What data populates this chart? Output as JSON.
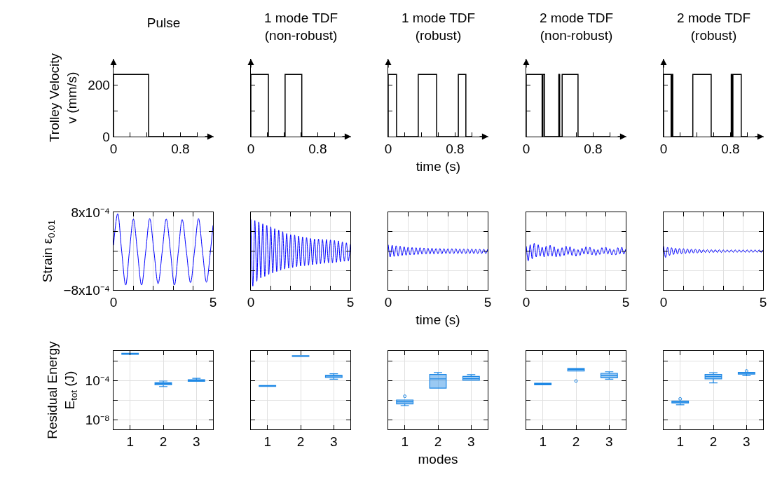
{
  "chart_data": [
    {
      "type": "step",
      "title": "Pulse",
      "ylabel": "Trolley Velocity\nv (mm/s)",
      "xlim": [
        0,
        1.2
      ],
      "ylim": [
        0,
        300
      ],
      "xticks": [
        0,
        {
          "value": 0.2,
          "label": null
        },
        {
          "value": 0.4,
          "label": null
        },
        {
          "value": 0.6,
          "label": null
        },
        0.8,
        {
          "value": 1.0,
          "label": null
        }
      ],
      "yticks": [
        0,
        {
          "value": 100,
          "label": null
        },
        200
      ],
      "color": "#000000",
      "x": [
        0,
        0,
        0.42,
        1.0
      ],
      "values": [
        0,
        240,
        0,
        0
      ]
    },
    {
      "type": "step",
      "title": "1 mode TDF\n(non-robust)",
      "xlim": [
        0,
        1.2
      ],
      "ylim": [
        0,
        300
      ],
      "xticks": [
        0,
        {
          "value": 0.2,
          "label": null
        },
        {
          "value": 0.4,
          "label": null
        },
        {
          "value": 0.6,
          "label": null
        },
        0.8,
        {
          "value": 1.0,
          "label": null
        }
      ],
      "yticks": [
        {
          "value": 0,
          "label": null
        },
        {
          "value": 100,
          "label": null
        },
        {
          "value": 200,
          "label": null
        }
      ],
      "tick_labels": "x",
      "color": "#000000",
      "x": [
        0,
        0,
        0.21,
        0.41,
        0.61,
        1.0
      ],
      "values": [
        0,
        240,
        0,
        240,
        0,
        0
      ]
    },
    {
      "type": "step",
      "title": "1 mode TDF\n(robust)",
      "xlabel": "time (s)",
      "xlim": [
        0,
        1.2
      ],
      "ylim": [
        0,
        300
      ],
      "xticks": [
        0,
        {
          "value": 0.2,
          "label": null
        },
        {
          "value": 0.4,
          "label": null
        },
        {
          "value": 0.6,
          "label": null
        },
        0.8,
        {
          "value": 1.0,
          "label": null
        }
      ],
      "yticks": [
        {
          "value": 0,
          "label": null
        },
        {
          "value": 100,
          "label": null
        },
        {
          "value": 200,
          "label": null
        }
      ],
      "tick_labels": "x",
      "color": "#000000",
      "x": [
        0,
        0,
        0.1,
        0.36,
        0.58,
        0.84,
        0.93,
        1.0
      ],
      "values": [
        0,
        240,
        0,
        240,
        0,
        240,
        0,
        0
      ]
    },
    {
      "type": "step",
      "title": "2 mode TDF\n(non-robust)",
      "xlim": [
        0,
        1.2
      ],
      "ylim": [
        0,
        300
      ],
      "xticks": [
        0,
        {
          "value": 0.2,
          "label": null
        },
        {
          "value": 0.4,
          "label": null
        },
        {
          "value": 0.6,
          "label": null
        },
        0.8,
        {
          "value": 1.0,
          "label": null
        }
      ],
      "yticks": [
        {
          "value": 0,
          "label": null
        },
        {
          "value": 100,
          "label": null
        },
        {
          "value": 200,
          "label": null
        }
      ],
      "tick_labels": "x",
      "color": "#000000",
      "x": [
        0,
        0,
        0.19,
        0.2,
        0.22,
        0.39,
        0.4,
        0.43,
        0.62,
        1.0
      ],
      "values": [
        0,
        240,
        0,
        240,
        0,
        240,
        0,
        240,
        0,
        0
      ]
    },
    {
      "type": "step",
      "title": "2 mode TDF\n(robust)",
      "xlim": [
        0,
        1.2
      ],
      "ylim": [
        0,
        300
      ],
      "xticks": [
        0,
        {
          "value": 0.2,
          "label": null
        },
        {
          "value": 0.4,
          "label": null
        },
        {
          "value": 0.6,
          "label": null
        },
        0.8,
        {
          "value": 1.0,
          "label": null
        }
      ],
      "yticks": [
        {
          "value": 0,
          "label": null
        },
        {
          "value": 100,
          "label": null
        },
        {
          "value": 200,
          "label": null
        }
      ],
      "tick_labels": "x",
      "color": "#000000",
      "x": [
        0,
        0,
        0.09,
        0.1,
        0.11,
        0.35,
        0.57,
        0.81,
        0.82,
        0.83,
        0.93,
        1.0
      ],
      "values": [
        0,
        240,
        0,
        240,
        0,
        240,
        0,
        240,
        0,
        240,
        0,
        0
      ]
    },
    {
      "type": "line",
      "ylabel": "Strain ε$_{0.01}$",
      "xlim": [
        0,
        5
      ],
      "ylim": [
        -0.0008,
        0.0008
      ],
      "xticks": [
        0,
        {
          "value": 1,
          "label": null
        },
        {
          "value": 2,
          "label": null
        },
        {
          "value": 3,
          "label": null
        },
        {
          "value": 4,
          "label": null
        },
        5
      ],
      "yticks": [
        {
          "value": -0.0008,
          "label": "−8x10⁻⁴"
        },
        {
          "value": -0.0004,
          "label": null
        },
        {
          "value": 0,
          "label": null
        },
        {
          "value": 0.0004,
          "label": null
        },
        {
          "value": 0.0008,
          "label": "8x10⁻⁴"
        }
      ],
      "grid": true,
      "color": "#0000ff",
      "x": [
        0,
        0.21,
        0.41,
        0.61,
        0.8,
        1.0,
        1.2,
        1.41,
        1.62,
        1.82,
        2.03,
        2.24,
        2.45,
        2.65,
        2.86,
        3.06,
        3.26,
        3.45,
        3.66,
        3.87,
        4.07,
        4.27,
        4.47,
        4.67,
        4.87,
        5.0
      ],
      "values": [
        0.00012,
        0.00077,
        0,
        -0.0007,
        0,
        0.00066,
        0,
        -0.0007,
        0,
        0.00067,
        0,
        -0.00067,
        0,
        0.00066,
        0,
        -0.0007,
        0,
        0.00065,
        0,
        -0.00065,
        0,
        0.00067,
        0,
        -0.00064,
        0,
        0.00053
      ]
    },
    {
      "type": "line",
      "xlim": [
        0,
        5
      ],
      "ylim": [
        -0.0008,
        0.0008
      ],
      "xticks": [
        0,
        {
          "value": 1,
          "label": null
        },
        {
          "value": 2,
          "label": null
        },
        {
          "value": 3,
          "label": null
        },
        {
          "value": 4,
          "label": null
        },
        5
      ],
      "yticks": [
        {
          "value": -0.0008,
          "label": null
        },
        {
          "value": -0.0004,
          "label": null
        },
        {
          "value": 0,
          "label": null
        },
        {
          "value": 0.0004,
          "label": null
        },
        {
          "value": 0.0008,
          "label": null
        }
      ],
      "tick_labels": "x",
      "grid": true,
      "color": "#0000ff",
      "x": [
        0,
        0.1,
        0.2,
        0.3,
        0.4,
        0.5,
        0.6,
        0.7,
        0.8,
        0.9,
        1,
        1.1,
        1.2,
        1.3,
        1.4,
        1.5,
        1.6,
        1.7,
        1.8,
        1.9,
        2,
        2.1,
        2.2,
        2.3,
        2.4,
        2.5,
        2.6,
        2.7,
        2.8,
        2.9,
        3,
        3.1,
        3.2,
        3.3,
        3.4,
        3.5,
        3.6,
        3.7,
        3.8,
        3.9,
        4,
        4.1,
        4.2,
        4.3,
        4.4,
        4.5,
        4.6,
        4.7,
        4.8,
        4.9,
        5
      ],
      "values": [
        0.00065,
        -0.00072,
        0.00063,
        -0.00062,
        0.0006,
        -0.00055,
        0.00056,
        -0.00052,
        0.00053,
        -0.00048,
        0.0005,
        -0.00045,
        0.00046,
        -0.00042,
        0.00043,
        -0.00039,
        0.0004,
        -0.00037,
        0.00036,
        -0.00035,
        0.00034,
        -0.00034,
        0.00033,
        -0.00032,
        0.00031,
        -0.00031,
        0.00029,
        -0.0003,
        0.00028,
        -0.00029,
        0.00026,
        -0.00028,
        0.00025,
        -0.00027,
        0.00025,
        -0.00026,
        0.00024,
        -0.00025,
        0.00024,
        -0.00024,
        0.00023,
        -0.00024,
        0.00022,
        -0.00023,
        0.00021,
        -0.00022,
        0.00019,
        -0.00021,
        0.00017,
        -0.0002,
        0.00014
      ]
    },
    {
      "type": "line",
      "xlabel": "time (s)",
      "xlim": [
        0,
        5
      ],
      "ylim": [
        -0.0008,
        0.0008
      ],
      "xticks": [
        0,
        {
          "value": 1,
          "label": null
        },
        {
          "value": 2,
          "label": null
        },
        {
          "value": 3,
          "label": null
        },
        {
          "value": 4,
          "label": null
        },
        5
      ],
      "yticks": [
        {
          "value": -0.0008,
          "label": null
        },
        {
          "value": -0.0004,
          "label": null
        },
        {
          "value": 0,
          "label": null
        },
        {
          "value": 0.0004,
          "label": null
        },
        {
          "value": 0.0008,
          "label": null
        }
      ],
      "tick_labels": "x",
      "grid": true,
      "color": "#0000ff",
      "x": [
        0,
        0.1,
        0.2,
        0.3,
        0.4,
        0.5,
        0.6,
        0.7,
        0.8,
        0.9,
        1,
        1.1,
        1.2,
        1.3,
        1.4,
        1.5,
        1.6,
        1.7,
        1.8,
        1.9,
        2,
        2.1,
        2.2,
        2.3,
        2.4,
        2.5,
        2.6,
        2.7,
        2.8,
        2.9,
        3,
        3.1,
        3.2,
        3.3,
        3.4,
        3.5,
        3.6,
        3.7,
        3.8,
        3.9,
        4,
        4.1,
        4.2,
        4.3,
        4.4,
        4.5,
        4.6,
        4.7,
        4.8,
        4.9,
        5
      ],
      "values": [
        0.00013,
        -0.00012,
        0.00012,
        -0.00011,
        0.00011,
        -0.0001,
        0.0001,
        -9e-05,
        9e-05,
        -8.5e-05,
        8e-05,
        -8e-05,
        7.5e-05,
        -7.5e-05,
        7e-05,
        -7e-05,
        7e-05,
        -6.5e-05,
        6.5e-05,
        -6e-05,
        6e-05,
        -6e-05,
        6e-05,
        -6e-05,
        5.5e-05,
        -5.5e-05,
        5.5e-05,
        -5.5e-05,
        5e-05,
        -5e-05,
        5e-05,
        -5e-05,
        5e-05,
        -5e-05,
        5e-05,
        -5e-05,
        4.5e-05,
        -5e-05,
        4.5e-05,
        -5e-05,
        4.5e-05,
        -5e-05,
        4.5e-05,
        -5e-05,
        4e-05,
        -5e-05,
        4e-05,
        -5e-05,
        4e-05,
        -5e-05,
        4e-05
      ]
    },
    {
      "type": "line",
      "xlim": [
        0,
        5
      ],
      "ylim": [
        -0.0008,
        0.0008
      ],
      "xticks": [
        0,
        {
          "value": 1,
          "label": null
        },
        {
          "value": 2,
          "label": null
        },
        {
          "value": 3,
          "label": null
        },
        {
          "value": 4,
          "label": null
        },
        5
      ],
      "yticks": [
        {
          "value": -0.0008,
          "label": null
        },
        {
          "value": -0.0004,
          "label": null
        },
        {
          "value": 0,
          "label": null
        },
        {
          "value": 0.0004,
          "label": null
        },
        {
          "value": 0.0008,
          "label": null
        }
      ],
      "tick_labels": "x",
      "grid": true,
      "color": "#0000ff",
      "x": [
        0,
        0.1,
        0.2,
        0.3,
        0.4,
        0.5,
        0.6,
        0.7,
        0.8,
        0.9,
        1,
        1.1,
        1.2,
        1.3,
        1.4,
        1.5,
        1.6,
        1.7,
        1.8,
        1.9,
        2,
        2.1,
        2.2,
        2.3,
        2.4,
        2.5,
        2.6,
        2.7,
        2.8,
        2.9,
        3,
        3.1,
        3.2,
        3.3,
        3.4,
        3.5,
        3.6,
        3.7,
        3.8,
        3.9,
        4,
        4.1,
        4.2,
        4.3,
        4.4,
        4.5,
        4.6,
        4.7,
        4.8,
        4.9,
        5
      ],
      "values": [
        0.0001,
        -0.0002,
        0.00013,
        -0.00016,
        0.00016,
        -0.00012,
        0.00013,
        -0.0001,
        8e-05,
        -0.00012,
        0.0001,
        -0.0001,
        0.00012,
        -0.0001,
        9e-05,
        -0.00012,
        5e-05,
        -0.00011,
        7e-05,
        -9e-05,
        0.0001,
        -7e-05,
        9e-05,
        -9e-05,
        5e-05,
        -0.0001,
        3e-05,
        -9e-05,
        6e-05,
        -6e-05,
        9e-05,
        -6e-05,
        8e-05,
        -8e-05,
        4e-05,
        -9e-05,
        3e-05,
        -7e-05,
        7e-05,
        -5e-05,
        8e-05,
        -6e-05,
        5e-05,
        -8e-05,
        3e-05,
        -8e-05,
        7e-05,
        -6e-05,
        8e-05,
        -6e-05,
        4e-05
      ]
    },
    {
      "type": "line",
      "xlim": [
        0,
        5
      ],
      "ylim": [
        -0.0008,
        0.0008
      ],
      "xticks": [
        0,
        {
          "value": 1,
          "label": null
        },
        {
          "value": 2,
          "label": null
        },
        {
          "value": 3,
          "label": null
        },
        {
          "value": 4,
          "label": null
        },
        5
      ],
      "yticks": [
        {
          "value": -0.0008,
          "label": null
        },
        {
          "value": -0.0004,
          "label": null
        },
        {
          "value": 0,
          "label": null
        },
        {
          "value": 0.0004,
          "label": null
        },
        {
          "value": 0.0008,
          "label": null
        }
      ],
      "tick_labels": "x",
      "grid": true,
      "color": "#0000ff",
      "x": [
        0,
        0.1,
        0.2,
        0.3,
        0.4,
        0.5,
        0.6,
        0.7,
        0.8,
        0.9,
        1,
        1.1,
        1.2,
        1.3,
        1.4,
        1.5,
        1.6,
        1.7,
        1.8,
        1.9,
        2,
        2.1,
        2.2,
        2.3,
        2.4,
        2.5,
        2.6,
        2.7,
        2.8,
        2.9,
        3,
        3.1,
        3.2,
        3.3,
        3.4,
        3.5,
        3.6,
        3.7,
        3.8,
        3.9,
        4,
        4.1,
        4.2,
        4.3,
        4.4,
        4.5,
        4.6,
        4.7,
        4.8,
        4.9,
        5
      ],
      "values": [
        0.0001,
        -0.00013,
        8e-05,
        -9e-05,
        7e-05,
        -7e-05,
        6e-05,
        -6e-05,
        5.5e-05,
        -5.5e-05,
        5e-05,
        -5e-05,
        4.5e-05,
        -4.5e-05,
        4e-05,
        -4e-05,
        4e-05,
        -4e-05,
        3.5e-05,
        -3.5e-05,
        3e-05,
        -3e-05,
        3e-05,
        -3e-05,
        3e-05,
        -3e-05,
        3e-05,
        -3e-05,
        3e-05,
        -3e-05,
        2.5e-05,
        -2.5e-05,
        2.5e-05,
        -2.5e-05,
        2.5e-05,
        -2.5e-05,
        2.5e-05,
        -2.5e-05,
        2.5e-05,
        -2.5e-05,
        2.5e-05,
        -2.5e-05,
        2.5e-05,
        -2.5e-05,
        2.5e-05,
        -2.5e-05,
        2.5e-05,
        -2.5e-05,
        2.5e-05,
        -2.5e-05,
        2.5e-05
      ]
    },
    {
      "type": "box",
      "ylabel": "Residual Energy\nE$_{tot}$ (J)",
      "categories": [
        "1",
        "2",
        "3"
      ],
      "log": true,
      "ylim": [
        1e-09,
        0.1
      ],
      "yticks": [
        {
          "value": 0.01,
          "label": null
        },
        {
          "value": 0.0001,
          "label": "10⁻⁴"
        },
        {
          "value": 1e-06,
          "label": null
        },
        {
          "value": 1e-08,
          "label": "10⁻⁸"
        }
      ],
      "grid": true,
      "color": "#1e88e5",
      "boxes": [
        {
          "low": 0.045,
          "q1": 0.045,
          "median": 0.052,
          "q3": 0.058,
          "high": 0.058
        },
        {
          "low": 2.3e-05,
          "q1": 3.5e-05,
          "median": 4.7e-05,
          "q3": 5.8e-05,
          "high": 8.5e-05
        },
        {
          "low": 8e-05,
          "q1": 8e-05,
          "median": 9.5e-05,
          "q3": 0.000115,
          "high": 0.00016
        }
      ]
    },
    {
      "type": "box",
      "categories": [
        "1",
        "2",
        "3"
      ],
      "log": true,
      "ylim": [
        1e-09,
        0.1
      ],
      "yticks": [
        {
          "value": 0.01,
          "label": null
        },
        {
          "value": 0.0001,
          "label": null
        },
        {
          "value": 1e-06,
          "label": null
        },
        {
          "value": 1e-08,
          "label": null
        }
      ],
      "tick_labels": "x",
      "grid": true,
      "color": "#1e88e5",
      "boxes": [
        {
          "low": 2.4e-05,
          "q1": 2.4e-05,
          "median": 2.7e-05,
          "q3": 3e-05,
          "high": 3e-05
        },
        {
          "low": 0.027,
          "q1": 0.027,
          "median": 0.03,
          "q3": 0.033,
          "high": 0.033
        },
        {
          "low": 0.00013,
          "q1": 0.0002,
          "median": 0.00027,
          "q3": 0.00033,
          "high": 0.00047
        }
      ]
    },
    {
      "type": "box",
      "xlabel": "modes",
      "categories": [
        "1",
        "2",
        "3"
      ],
      "log": true,
      "ylim": [
        1e-09,
        0.1
      ],
      "yticks": [
        {
          "value": 0.01,
          "label": null
        },
        {
          "value": 0.0001,
          "label": null
        },
        {
          "value": 1e-06,
          "label": null
        },
        {
          "value": 1e-08,
          "label": null
        }
      ],
      "tick_labels": "x",
      "grid": true,
      "color": "#1e88e5",
      "boxes": [
        {
          "low": 2.6e-07,
          "q1": 4e-07,
          "median": 6.5e-07,
          "q3": 1e-06,
          "high": 1e-06,
          "outliers": [
            2.4e-06
          ]
        },
        {
          "low": 1.6e-05,
          "q1": 1.6e-05,
          "median": 0.00014,
          "q3": 0.0004,
          "high": 0.00062
        },
        {
          "low": 0.0001,
          "q1": 0.0001,
          "median": 0.00015,
          "q3": 0.00025,
          "high": 0.00038
        }
      ]
    },
    {
      "type": "box",
      "categories": [
        "1",
        "2",
        "3"
      ],
      "log": true,
      "ylim": [
        1e-09,
        0.1
      ],
      "yticks": [
        {
          "value": 0.01,
          "label": null
        },
        {
          "value": 0.0001,
          "label": null
        },
        {
          "value": 1e-06,
          "label": null
        },
        {
          "value": 1e-08,
          "label": null
        }
      ],
      "tick_labels": "x",
      "grid": true,
      "color": "#1e88e5",
      "boxes": [
        {
          "low": 3.5e-05,
          "q1": 3.5e-05,
          "median": 4.2e-05,
          "q3": 5e-05,
          "high": 5e-05
        },
        {
          "low": 0.0009,
          "q1": 0.0009,
          "median": 0.0013,
          "q3": 0.0016,
          "high": 0.0016,
          "outliers": [
            8.5e-05
          ]
        },
        {
          "low": 0.00013,
          "q1": 0.00018,
          "median": 0.0003,
          "q3": 0.00052,
          "high": 0.00075
        }
      ]
    },
    {
      "type": "box",
      "categories": [
        "1",
        "2",
        "3"
      ],
      "log": true,
      "ylim": [
        1e-09,
        0.1
      ],
      "yticks": [
        {
          "value": 0.01,
          "label": null
        },
        {
          "value": 0.0001,
          "label": null
        },
        {
          "value": 1e-06,
          "label": null
        },
        {
          "value": 1e-08,
          "label": null
        }
      ],
      "tick_labels": "x",
      "grid": true,
      "color": "#1e88e5",
      "boxes": [
        {
          "low": 3.2e-07,
          "q1": 4.9e-07,
          "median": 6.1e-07,
          "q3": 7.6e-07,
          "high": 7.6e-07,
          "outliers": [
            1.3e-06
          ]
        },
        {
          "low": 5.5e-05,
          "q1": 0.00014,
          "median": 0.00024,
          "q3": 0.0004,
          "high": 0.0006
        },
        {
          "low": 0.0003,
          "q1": 0.00042,
          "median": 0.00052,
          "q3": 0.00065,
          "high": 0.00065,
          "outliers": [
            0.0009
          ]
        }
      ]
    }
  ]
}
